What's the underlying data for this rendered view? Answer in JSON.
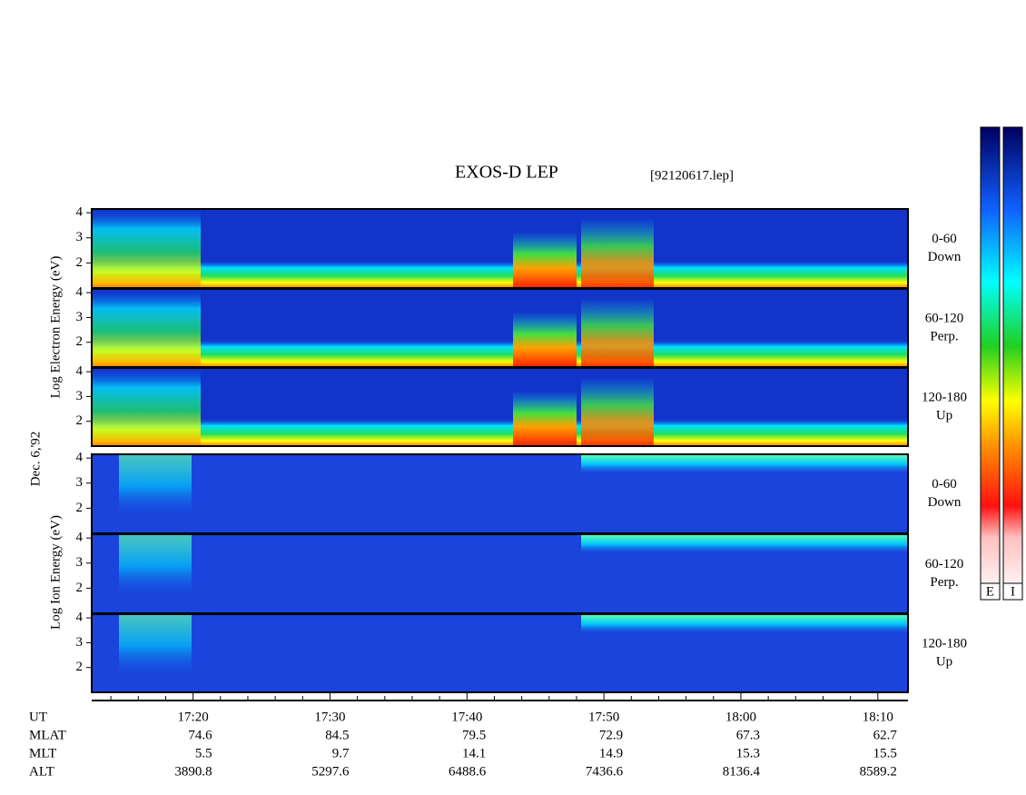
{
  "title": "EXOS-D LEP",
  "file": "[92120617.lep]",
  "left_labels": {
    "electron": "Log Electron Energy (eV)",
    "date": "Dec. 6,'92",
    "ion": "Log Ion Energy (eV)"
  },
  "electron_panels": [
    [
      "0-60",
      "Down"
    ],
    [
      "60-120",
      "Perp."
    ],
    [
      "120-180",
      "Up"
    ]
  ],
  "ion_panels": [
    [
      "0-60",
      "Down"
    ],
    [
      "60-120",
      "Perp."
    ],
    [
      "120-180",
      "Up"
    ]
  ],
  "ylim": [
    1,
    4.15
  ],
  "yticks": [
    2,
    3,
    4
  ],
  "xlim": [
    1032.6,
    1092.2
  ],
  "xticks": [
    {
      "value": 1040,
      "label": "17:20"
    },
    {
      "value": 1050,
      "label": "17:30"
    },
    {
      "value": 1060,
      "label": "17:40"
    },
    {
      "value": 1070,
      "label": "17:50"
    },
    {
      "value": 1080,
      "label": "18:00"
    },
    {
      "value": 1090,
      "label": "18:10"
    }
  ],
  "minor_xticks": [
    1034,
    1036,
    1038,
    1042,
    1044,
    1046,
    1048,
    1052,
    1054,
    1056,
    1058,
    1062,
    1064,
    1066,
    1068,
    1072,
    1074,
    1076,
    1078,
    1082,
    1084,
    1086,
    1088
  ],
  "ut_label": "UT",
  "orbit_rows": [
    {
      "name": "MLAT",
      "values": [
        74.6,
        84.5,
        79.5,
        72.9,
        67.3,
        62.7
      ]
    },
    {
      "name": "MLT",
      "values": [
        5.5,
        9.7,
        14.1,
        14.9,
        15.3,
        15.5
      ]
    },
    {
      "name": "ALT",
      "values": [
        3890.8,
        5297.6,
        6488.6,
        7436.6,
        8136.4,
        8589.2
      ]
    }
  ],
  "colorbar_labels": [
    "E",
    "I"
  ]
}
